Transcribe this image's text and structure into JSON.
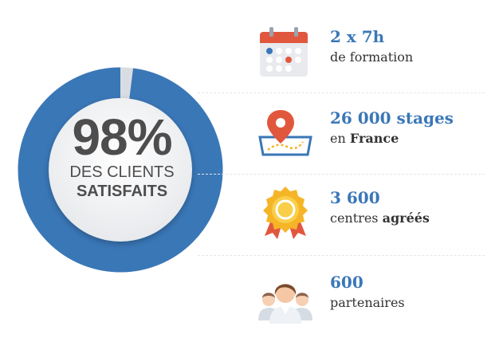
{
  "hero": {
    "percent": "98%",
    "line1": "DES CLIENTS",
    "line2": "SATISFAITS",
    "satisfaction_fraction": 0.98,
    "ring_color": "#3a77b7",
    "ring_bg": "#d9dde3"
  },
  "stats": [
    {
      "icon": "calendar-icon",
      "title": "2 x 7h",
      "sub_plain": "de formation",
      "sub_bold": ""
    },
    {
      "icon": "map-pin-icon",
      "title": "26 000 stages",
      "sub_plain": "en ",
      "sub_bold": "France"
    },
    {
      "icon": "medal-icon",
      "title": "3 600",
      "sub_plain": "centres ",
      "sub_bold": "agréés"
    },
    {
      "icon": "people-icon",
      "title": "600",
      "sub_plain": "partenaires",
      "sub_bold": ""
    }
  ]
}
